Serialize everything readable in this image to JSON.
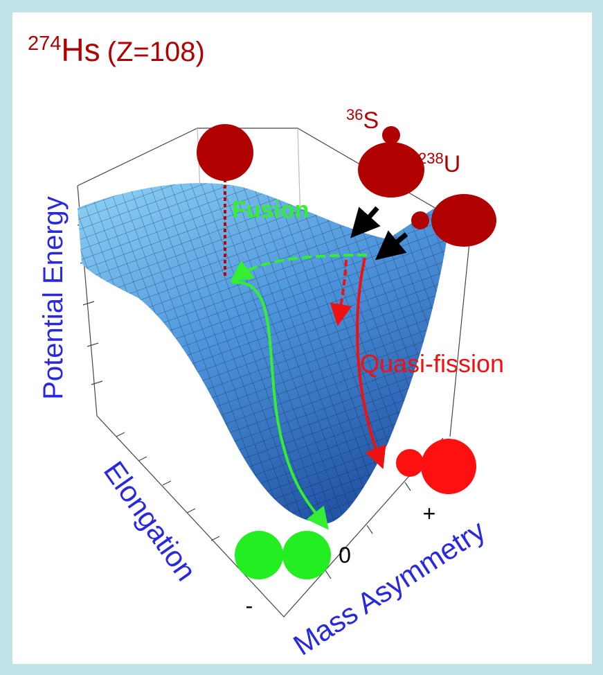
{
  "title": {
    "mass": "274",
    "symbol": "Hs",
    "charge": "(Z=108)"
  },
  "projectile": {
    "mass": "36",
    "symbol": "S"
  },
  "target": {
    "mass": "238",
    "symbol": "U"
  },
  "paths": {
    "fusion": "Fusion",
    "quasi_fission": "Quasi-fission"
  },
  "axes": {
    "energy": "Potential Energy",
    "elongation": "Elongation",
    "asymmetry": "Mass Asymmetry"
  },
  "asymmetry_ticks": [
    "-",
    "0",
    "+"
  ]
}
